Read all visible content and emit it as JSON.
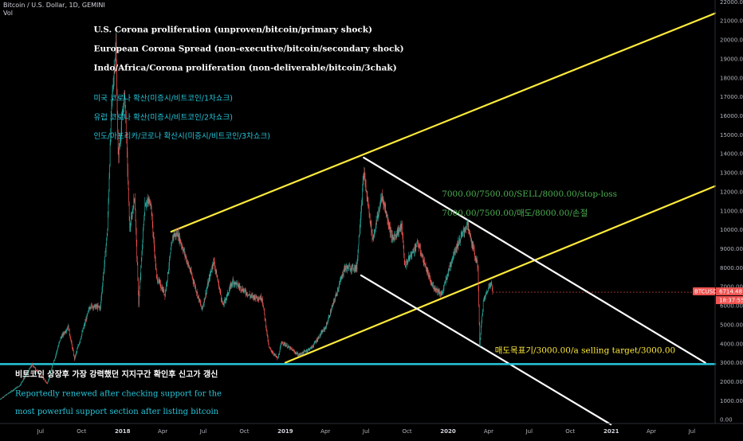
{
  "chart_data": {
    "type": "candlestick",
    "symbol_header": "Bitcoin / U.S. Dollar, 1D, GEMINI",
    "volume_label": "Vol",
    "y_axis": {
      "ticks": [
        "22000.00",
        "21000.00",
        "20000.00",
        "19000.00",
        "18000.00",
        "17000.00",
        "16000.00",
        "15000.00",
        "14000.00",
        "13000.00",
        "12000.00",
        "11000.00",
        "10000.00",
        "9000.00",
        "8000.00",
        "7000.00",
        "6000.00",
        "5000.00",
        "4000.00",
        "3000.00",
        "2000.00",
        "1000.00",
        "0.00"
      ],
      "range": [
        -200,
        22100
      ]
    },
    "x_axis": {
      "ticks": [
        {
          "label": "Jul",
          "date": "2017-07-01",
          "bold": false
        },
        {
          "label": "Oct",
          "date": "2017-10-01",
          "bold": false
        },
        {
          "label": "2018",
          "date": "2018-01-01",
          "bold": true
        },
        {
          "label": "Apr",
          "date": "2018-04-01",
          "bold": false
        },
        {
          "label": "Jul",
          "date": "2018-07-01",
          "bold": false
        },
        {
          "label": "Oct",
          "date": "2018-10-01",
          "bold": false
        },
        {
          "label": "2019",
          "date": "2019-01-01",
          "bold": true
        },
        {
          "label": "Apr",
          "date": "2019-04-01",
          "bold": false
        },
        {
          "label": "Jul",
          "date": "2019-07-01",
          "bold": false
        },
        {
          "label": "Oct",
          "date": "2019-10-01",
          "bold": false
        },
        {
          "label": "2020",
          "date": "2020-01-01",
          "bold": true
        },
        {
          "label": "Apr",
          "date": "2020-04-01",
          "bold": false
        },
        {
          "label": "Jul",
          "date": "2020-07-01",
          "bold": false
        },
        {
          "label": "Oct",
          "date": "2020-10-01",
          "bold": false
        },
        {
          "label": "2021",
          "date": "2021-01-01",
          "bold": true
        },
        {
          "label": "Apr",
          "date": "2021-04-01",
          "bold": false
        },
        {
          "label": "Jul",
          "date": "2021-07-01",
          "bold": false
        }
      ],
      "range": [
        "2017-04-01",
        "2021-08-22"
      ]
    },
    "price_series": [
      {
        "date": "2017-04-01",
        "value": 1080
      },
      {
        "date": "2017-05-15",
        "value": 1800
      },
      {
        "date": "2017-06-12",
        "value": 2900
      },
      {
        "date": "2017-07-16",
        "value": 1900
      },
      {
        "date": "2017-08-15",
        "value": 4300
      },
      {
        "date": "2017-09-01",
        "value": 4900
      },
      {
        "date": "2017-09-15",
        "value": 3200
      },
      {
        "date": "2017-10-20",
        "value": 6000
      },
      {
        "date": "2017-11-12",
        "value": 5900
      },
      {
        "date": "2017-11-28",
        "value": 10000
      },
      {
        "date": "2017-12-07",
        "value": 16500
      },
      {
        "date": "2017-12-17",
        "value": 19800
      },
      {
        "date": "2017-12-22",
        "value": 13800
      },
      {
        "date": "2018-01-06",
        "value": 17200
      },
      {
        "date": "2018-01-17",
        "value": 10000
      },
      {
        "date": "2018-01-28",
        "value": 11800
      },
      {
        "date": "2018-02-06",
        "value": 6100
      },
      {
        "date": "2018-02-20",
        "value": 11400
      },
      {
        "date": "2018-03-05",
        "value": 11500
      },
      {
        "date": "2018-03-18",
        "value": 7500
      },
      {
        "date": "2018-04-06",
        "value": 6600
      },
      {
        "date": "2018-04-24",
        "value": 9700
      },
      {
        "date": "2018-05-05",
        "value": 9800
      },
      {
        "date": "2018-06-05",
        "value": 7600
      },
      {
        "date": "2018-06-28",
        "value": 5800
      },
      {
        "date": "2018-07-24",
        "value": 8400
      },
      {
        "date": "2018-08-14",
        "value": 6000
      },
      {
        "date": "2018-09-05",
        "value": 7300
      },
      {
        "date": "2018-10-15",
        "value": 6500
      },
      {
        "date": "2018-11-10",
        "value": 6400
      },
      {
        "date": "2018-11-25",
        "value": 3800
      },
      {
        "date": "2018-12-15",
        "value": 3200
      },
      {
        "date": "2018-12-24",
        "value": 4100
      },
      {
        "date": "2019-01-31",
        "value": 3400
      },
      {
        "date": "2019-03-01",
        "value": 3800
      },
      {
        "date": "2019-04-02",
        "value": 4900
      },
      {
        "date": "2019-05-14",
        "value": 8000
      },
      {
        "date": "2019-06-10",
        "value": 8000
      },
      {
        "date": "2019-06-26",
        "value": 13000
      },
      {
        "date": "2019-07-16",
        "value": 9500
      },
      {
        "date": "2019-08-06",
        "value": 11800
      },
      {
        "date": "2019-08-29",
        "value": 9500
      },
      {
        "date": "2019-09-19",
        "value": 10200
      },
      {
        "date": "2019-09-26",
        "value": 8100
      },
      {
        "date": "2019-10-25",
        "value": 9300
      },
      {
        "date": "2019-11-25",
        "value": 7100
      },
      {
        "date": "2019-12-18",
        "value": 6600
      },
      {
        "date": "2020-01-14",
        "value": 8800
      },
      {
        "date": "2020-02-13",
        "value": 10300
      },
      {
        "date": "2020-03-08",
        "value": 8000
      },
      {
        "date": "2020-03-12",
        "value": 4000
      },
      {
        "date": "2020-03-20",
        "value": 6200
      },
      {
        "date": "2020-04-06",
        "value": 7300
      },
      {
        "date": "2020-04-10",
        "value": 6714.48
      }
    ],
    "last_price": {
      "label": "BTCUSD",
      "price": "6714.48",
      "timer": "18:37:55",
      "value": 6714.48
    },
    "trendlines": [
      {
        "name": "upper-yellow-channel-line",
        "color": "#ffeb3b",
        "from": [
          "2018-04-20",
          9900
        ],
        "to": [
          "2021-08-22",
          21400
        ]
      },
      {
        "name": "lower-yellow-channel-line",
        "color": "#ffeb3b",
        "from": [
          "2019-01-01",
          3000
        ],
        "to": [
          "2021-08-22",
          12300
        ]
      },
      {
        "name": "upper-white-downtrend-line",
        "color": "#ffffff",
        "from": [
          "2019-06-26",
          13800
        ],
        "to": [
          "2021-07-31",
          3000
        ]
      },
      {
        "name": "lower-white-downtrend-line",
        "color": "#ffffff",
        "from": [
          "2019-06-20",
          7600
        ],
        "to": [
          "2020-12-31",
          -250
        ]
      },
      {
        "name": "support-line-3000",
        "color": "#26c6da",
        "from": [
          "2017-04-01",
          2930
        ],
        "to": [
          "2021-08-22",
          2930
        ]
      }
    ],
    "annotations": [
      {
        "text": "U.S. Corona proliferation (unproven/bitcoin/primary shock)",
        "style": "en",
        "at": [
          "2017-10-28",
          20400
        ]
      },
      {
        "text": "European Corona Spread (non-executive/bitcoin/secondary shock)",
        "style": "en",
        "at": [
          "2017-10-28",
          19400
        ]
      },
      {
        "text": "Indo/Africa/Corona proliferation (non-deliverable/bitcoin/3chak)",
        "style": "en",
        "at": [
          "2017-10-28",
          18400
        ]
      },
      {
        "text": "미국 코로나 확산(미증시/비트코인/1차쇼크)",
        "style": "ko",
        "at": [
          "2017-10-28",
          16800
        ]
      },
      {
        "text": "유럽 코로나 확산(미증시/비트코인/2차쇼크)",
        "style": "ko",
        "at": [
          "2017-10-28",
          15800
        ]
      },
      {
        "text": "인도/아프리카/코로나 확산시(미증시/비트코인/3차쇼크)",
        "style": "ko",
        "at": [
          "2017-10-28",
          14800
        ]
      },
      {
        "text": "7000.00/7500.00/SELL/8000.00/stop-loss",
        "style": "green",
        "at": [
          "2019-12-18",
          11750
        ]
      },
      {
        "text": "7000.00/7500.00/매도/8000.00/손절",
        "style": "green",
        "at": [
          "2019-12-18",
          10750
        ]
      },
      {
        "text": "매도목표기/3000.00/a selling target/3000.00",
        "style": "yellow",
        "at": [
          "2020-04-15",
          3500
        ]
      },
      {
        "text": "비트코인 상장후 가장 강력했던 지지구간 확인후 신고가 갱신",
        "style": "support-ko",
        "at": [
          "2017-05-05",
          2250
        ]
      },
      {
        "text": "Reportedly renewed after checking support for the",
        "style": "support-en",
        "at": [
          "2017-05-05",
          1250
        ]
      },
      {
        "text": "most powerful support section after listing bitcoin",
        "style": "support-en",
        "at": [
          "2017-05-05",
          300
        ]
      }
    ],
    "colors": {
      "background": "#000000",
      "candle_up": "#26a69a",
      "candle_down": "#ef5350",
      "price_tag": "#ef5350",
      "axis_text": "#b2b5be"
    }
  }
}
